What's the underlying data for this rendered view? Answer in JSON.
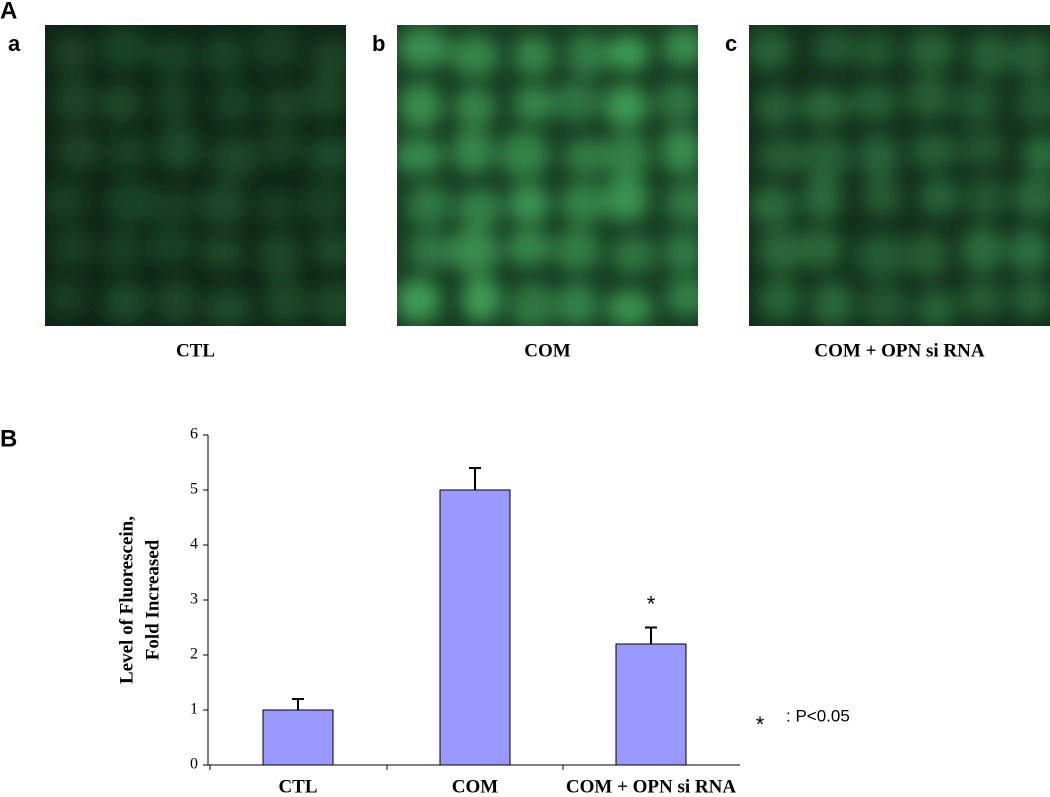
{
  "panel_a": {
    "label": "A",
    "images": [
      {
        "letter": "a",
        "caption": "CTL"
      },
      {
        "letter": "b",
        "caption": "COM"
      },
      {
        "letter": "c",
        "caption": "COM + OPN si RNA"
      }
    ]
  },
  "chart_data": {
    "type": "bar",
    "panel_label": "B",
    "y_label": [
      "Level of Fluorescein,",
      "Fold Increased"
    ],
    "categories": [
      "CTL",
      "COM",
      "COM + OPN si RNA"
    ],
    "values": [
      1,
      5,
      2.2
    ],
    "errors": [
      0.2,
      0.4,
      0.3
    ],
    "significance": [
      null,
      null,
      "*"
    ],
    "color": "#9999ff",
    "ylim": [
      0,
      6
    ],
    "yticks": [
      0,
      1,
      2,
      3,
      4,
      5,
      6
    ],
    "note": {
      "symbol": "*",
      "text": ": P<0.05"
    }
  }
}
